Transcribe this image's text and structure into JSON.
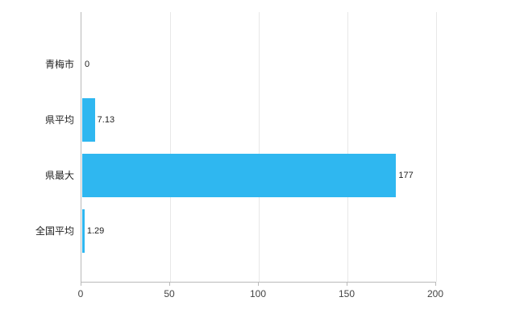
{
  "chart_data": {
    "type": "bar",
    "orientation": "horizontal",
    "title": "",
    "xlabel": "",
    "ylabel": "",
    "categories": [
      "青梅市",
      "県平均",
      "県最大",
      "全国平均"
    ],
    "values": [
      0,
      7.13,
      177,
      1.29
    ],
    "value_labels": [
      "0",
      "7.13",
      "177",
      "1.29"
    ],
    "xlim": [
      0,
      200
    ],
    "x_ticks": [
      0,
      50,
      100,
      150,
      200
    ],
    "x_tick_labels": [
      "0",
      "50",
      "100",
      "150",
      "200"
    ],
    "grid": true,
    "legend": "none",
    "bar_color": "#2fb7f0",
    "axis_color": "#b9b9b9",
    "gridline_color": "#e8e8e8",
    "background_color": "#ffffff"
  }
}
